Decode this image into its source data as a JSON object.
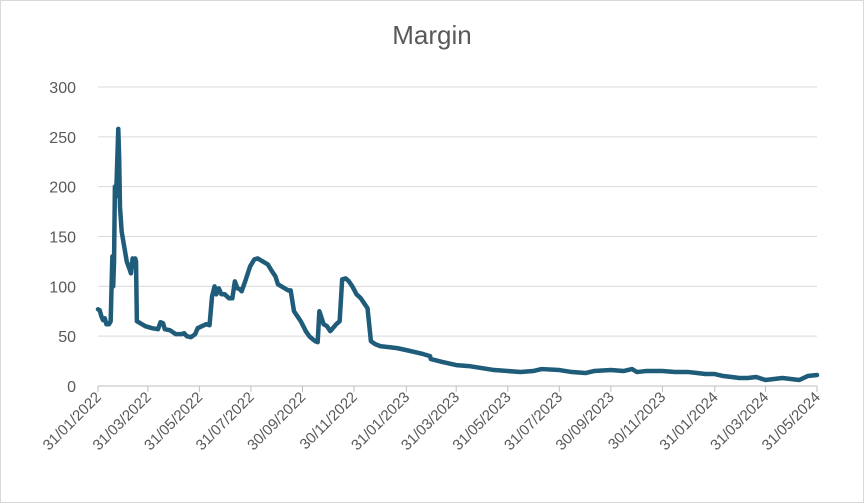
{
  "chart_data": {
    "type": "line",
    "title": "Margin",
    "xlabel": "",
    "ylabel": "",
    "ylim": [
      0,
      300
    ],
    "yticks": [
      "0",
      "50",
      "100",
      "150",
      "200",
      "250",
      "300"
    ],
    "xlim": [
      "2022-01-31",
      "2024-05-31"
    ],
    "xtick_labels": [
      "31/01/2022",
      "31/03/2022",
      "31/05/2022",
      "31/07/2022",
      "30/09/2022",
      "30/11/2022",
      "31/01/2023",
      "31/03/2023",
      "31/05/2023",
      "31/07/2023",
      "30/09/2023",
      "30/11/2023",
      "31/01/2024",
      "31/03/2024",
      "31/05/2024"
    ],
    "xtick_dates": [
      "2022-01-31",
      "2022-03-31",
      "2022-05-31",
      "2022-07-31",
      "2022-09-30",
      "2022-11-30",
      "2023-01-31",
      "2023-03-31",
      "2023-05-31",
      "2023-07-31",
      "2023-09-30",
      "2023-11-30",
      "2024-01-31",
      "2024-03-31",
      "2024-05-31"
    ],
    "grid": true,
    "legend": "none",
    "series_color": "#1f5c7a",
    "series": [
      {
        "points": [
          [
            "2022-01-31",
            77
          ],
          [
            "2022-02-02",
            76
          ],
          [
            "2022-02-04",
            70
          ],
          [
            "2022-02-06",
            66
          ],
          [
            "2022-02-08",
            68
          ],
          [
            "2022-02-10",
            62
          ],
          [
            "2022-02-13",
            62
          ],
          [
            "2022-02-15",
            65
          ],
          [
            "2022-02-17",
            130
          ],
          [
            "2022-02-18",
            100
          ],
          [
            "2022-02-19",
            125
          ],
          [
            "2022-02-20",
            200
          ],
          [
            "2022-02-21",
            190
          ],
          [
            "2022-02-22",
            205
          ],
          [
            "2022-02-24",
            258
          ],
          [
            "2022-02-25",
            230
          ],
          [
            "2022-02-26",
            180
          ],
          [
            "2022-02-28",
            155
          ],
          [
            "2022-03-03",
            140
          ],
          [
            "2022-03-06",
            125
          ],
          [
            "2022-03-09",
            118
          ],
          [
            "2022-03-11",
            113
          ],
          [
            "2022-03-13",
            128
          ],
          [
            "2022-03-14",
            120
          ],
          [
            "2022-03-16",
            128
          ],
          [
            "2022-03-17",
            125
          ],
          [
            "2022-03-18",
            65
          ],
          [
            "2022-03-22",
            63
          ],
          [
            "2022-03-28",
            60
          ],
          [
            "2022-04-05",
            58
          ],
          [
            "2022-04-12",
            57
          ],
          [
            "2022-04-15",
            64
          ],
          [
            "2022-04-18",
            63
          ],
          [
            "2022-04-20",
            57
          ],
          [
            "2022-04-26",
            56
          ],
          [
            "2022-05-03",
            52
          ],
          [
            "2022-05-10",
            52
          ],
          [
            "2022-05-13",
            53
          ],
          [
            "2022-05-16",
            50
          ],
          [
            "2022-05-21",
            49
          ],
          [
            "2022-05-26",
            52
          ],
          [
            "2022-05-29",
            58
          ],
          [
            "2022-06-03",
            60
          ],
          [
            "2022-06-08",
            62
          ],
          [
            "2022-06-12",
            61
          ],
          [
            "2022-06-15",
            90
          ],
          [
            "2022-06-18",
            100
          ],
          [
            "2022-06-20",
            92
          ],
          [
            "2022-06-23",
            98
          ],
          [
            "2022-06-26",
            92
          ],
          [
            "2022-06-30",
            92
          ],
          [
            "2022-07-05",
            88
          ],
          [
            "2022-07-09",
            88
          ],
          [
            "2022-07-12",
            105
          ],
          [
            "2022-07-15",
            98
          ],
          [
            "2022-07-18",
            97
          ],
          [
            "2022-07-20",
            95
          ],
          [
            "2022-07-25",
            107
          ],
          [
            "2022-07-30",
            120
          ],
          [
            "2022-08-04",
            127
          ],
          [
            "2022-08-08",
            128
          ],
          [
            "2022-08-14",
            125
          ],
          [
            "2022-08-20",
            122
          ],
          [
            "2022-08-25",
            115
          ],
          [
            "2022-08-29",
            110
          ],
          [
            "2022-09-01",
            102
          ],
          [
            "2022-09-05",
            100
          ],
          [
            "2022-09-09",
            98
          ],
          [
            "2022-09-13",
            96
          ],
          [
            "2022-09-16",
            96
          ],
          [
            "2022-09-20",
            75
          ],
          [
            "2022-09-24",
            70
          ],
          [
            "2022-09-28",
            65
          ],
          [
            "2022-10-01",
            60
          ],
          [
            "2022-10-04",
            55
          ],
          [
            "2022-10-08",
            50
          ],
          [
            "2022-10-12",
            47
          ],
          [
            "2022-10-15",
            45
          ],
          [
            "2022-10-18",
            44
          ],
          [
            "2022-10-20",
            75
          ],
          [
            "2022-10-22",
            70
          ],
          [
            "2022-10-25",
            62
          ],
          [
            "2022-10-29",
            60
          ],
          [
            "2022-11-02",
            55
          ],
          [
            "2022-11-05",
            58
          ],
          [
            "2022-11-09",
            62
          ],
          [
            "2022-11-13",
            65
          ],
          [
            "2022-11-16",
            107
          ],
          [
            "2022-11-20",
            108
          ],
          [
            "2022-11-24",
            105
          ],
          [
            "2022-11-28",
            100
          ],
          [
            "2022-12-03",
            92
          ],
          [
            "2022-12-08",
            88
          ],
          [
            "2022-12-12",
            83
          ],
          [
            "2022-12-16",
            78
          ],
          [
            "2022-12-20",
            45
          ],
          [
            "2022-12-25",
            42
          ],
          [
            "2022-12-31",
            40
          ],
          [
            "2023-01-10",
            39
          ],
          [
            "2023-01-20",
            38
          ],
          [
            "2023-01-31",
            36
          ],
          [
            "2023-02-10",
            34
          ],
          [
            "2023-02-20",
            32
          ],
          [
            "2023-02-28",
            30
          ],
          [
            "2023-03-01",
            27
          ],
          [
            "2023-03-15",
            24
          ],
          [
            "2023-03-31",
            21
          ],
          [
            "2023-04-15",
            20
          ],
          [
            "2023-04-30",
            18
          ],
          [
            "2023-05-15",
            16
          ],
          [
            "2023-05-31",
            15
          ],
          [
            "2023-06-15",
            14
          ],
          [
            "2023-06-30",
            15
          ],
          [
            "2023-07-10",
            17
          ],
          [
            "2023-07-31",
            16
          ],
          [
            "2023-08-15",
            14
          ],
          [
            "2023-08-31",
            13
          ],
          [
            "2023-09-10",
            15
          ],
          [
            "2023-09-30",
            16
          ],
          [
            "2023-10-15",
            15
          ],
          [
            "2023-10-25",
            17
          ],
          [
            "2023-10-31",
            14
          ],
          [
            "2023-11-10",
            15
          ],
          [
            "2023-11-30",
            15
          ],
          [
            "2023-12-15",
            14
          ],
          [
            "2023-12-31",
            14
          ],
          [
            "2024-01-10",
            13
          ],
          [
            "2024-01-20",
            12
          ],
          [
            "2024-01-31",
            12
          ],
          [
            "2024-02-10",
            10
          ],
          [
            "2024-02-20",
            9
          ],
          [
            "2024-02-29",
            8
          ],
          [
            "2024-03-10",
            8
          ],
          [
            "2024-03-20",
            9
          ],
          [
            "2024-03-31",
            6
          ],
          [
            "2024-04-10",
            7
          ],
          [
            "2024-04-20",
            8
          ],
          [
            "2024-04-30",
            7
          ],
          [
            "2024-05-10",
            6
          ],
          [
            "2024-05-20",
            10
          ],
          [
            "2024-05-31",
            11
          ]
        ]
      }
    ]
  }
}
